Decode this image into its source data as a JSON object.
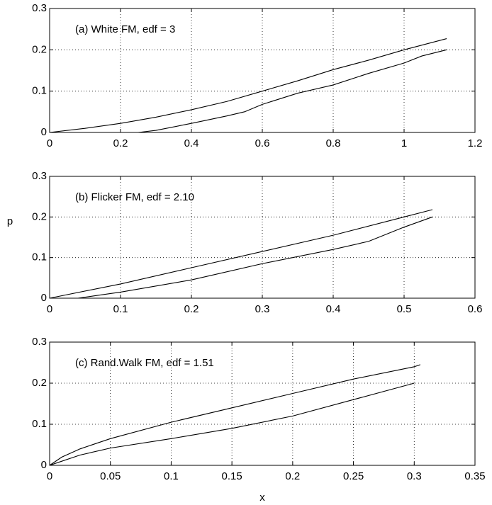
{
  "chart_data": [
    {
      "type": "line",
      "annotation": "(a) White FM, edf = 3",
      "xlim": [
        0,
        1.2
      ],
      "xticks": [
        0,
        0.2,
        0.4,
        0.6,
        0.8,
        1,
        1.2
      ],
      "ylim": [
        0,
        0.3
      ],
      "yticks": [
        0,
        0.1,
        0.2,
        0.3
      ],
      "grid": true,
      "series": [
        {
          "color": "#000000",
          "x": [
            0,
            0.1,
            0.2,
            0.3,
            0.4,
            0.5,
            0.6,
            0.7,
            0.8,
            0.9,
            1.0,
            1.12
          ],
          "values": [
            0,
            0.01,
            0.022,
            0.037,
            0.055,
            0.075,
            0.1,
            0.125,
            0.152,
            0.175,
            0.2,
            0.227
          ]
        },
        {
          "color": "#000000",
          "x": [
            0.25,
            0.3,
            0.4,
            0.5,
            0.55,
            0.6,
            0.7,
            0.8,
            0.9,
            1.0,
            1.05,
            1.12
          ],
          "values": [
            0,
            0.005,
            0.022,
            0.04,
            0.05,
            0.068,
            0.095,
            0.115,
            0.143,
            0.168,
            0.185,
            0.2
          ]
        }
      ]
    },
    {
      "type": "line",
      "annotation": "(b) Flicker FM, edf = 2.10",
      "ylabel": "p",
      "xlim": [
        0,
        0.6
      ],
      "xticks": [
        0,
        0.1,
        0.2,
        0.3,
        0.4,
        0.5,
        0.6
      ],
      "ylim": [
        0,
        0.3
      ],
      "yticks": [
        0,
        0.1,
        0.2,
        0.3
      ],
      "grid": true,
      "series": [
        {
          "color": "#000000",
          "x": [
            0,
            0.1,
            0.2,
            0.3,
            0.4,
            0.5,
            0.54
          ],
          "values": [
            0,
            0.035,
            0.075,
            0.115,
            0.155,
            0.2,
            0.218
          ]
        },
        {
          "color": "#000000",
          "x": [
            0.04,
            0.1,
            0.2,
            0.3,
            0.4,
            0.45,
            0.5,
            0.54
          ],
          "values": [
            0,
            0.015,
            0.045,
            0.085,
            0.12,
            0.14,
            0.175,
            0.2
          ]
        }
      ]
    },
    {
      "type": "line",
      "annotation": "(c) Rand.Walk FM, edf = 1.51",
      "xlabel": "x",
      "xlim": [
        0,
        0.35
      ],
      "xticks": [
        0,
        0.05,
        0.1,
        0.15,
        0.2,
        0.25,
        0.3,
        0.35
      ],
      "ylim": [
        0,
        0.3
      ],
      "yticks": [
        0,
        0.1,
        0.2,
        0.3
      ],
      "grid": true,
      "series": [
        {
          "color": "#000000",
          "x": [
            0,
            0.01,
            0.025,
            0.05,
            0.1,
            0.15,
            0.2,
            0.25,
            0.3,
            0.305
          ],
          "values": [
            0,
            0.02,
            0.04,
            0.065,
            0.105,
            0.14,
            0.175,
            0.21,
            0.24,
            0.245
          ]
        },
        {
          "color": "#000000",
          "x": [
            0,
            0.01,
            0.025,
            0.05,
            0.1,
            0.15,
            0.2,
            0.25,
            0.3
          ],
          "values": [
            0,
            0.01,
            0.025,
            0.042,
            0.065,
            0.09,
            0.12,
            0.16,
            0.2
          ]
        }
      ]
    }
  ]
}
